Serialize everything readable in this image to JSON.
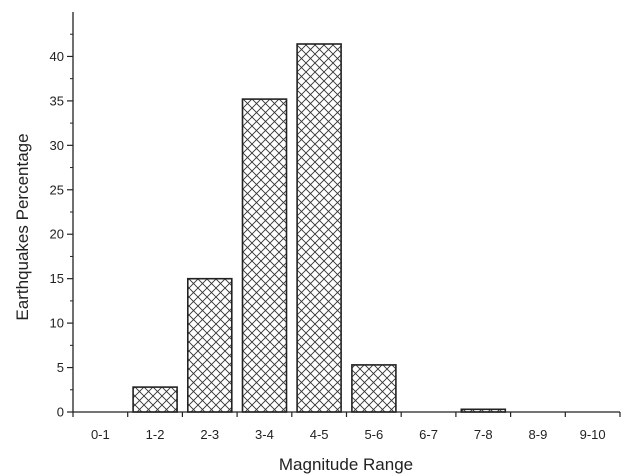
{
  "chart_data": {
    "type": "bar",
    "categories": [
      "0-1",
      "1-2",
      "2-3",
      "3-4",
      "4-5",
      "5-6",
      "6-7",
      "7-8",
      "8-9",
      "9-10"
    ],
    "values": [
      0,
      2.8,
      15,
      35.2,
      41.4,
      5.3,
      0,
      0.3,
      0,
      0
    ],
    "title": "",
    "xlabel": "Magnitude Range",
    "ylabel": "Earthquakes Percentage",
    "ylim": [
      0,
      45
    ],
    "yticks": [
      0,
      5,
      10,
      15,
      20,
      25,
      30,
      35,
      40
    ],
    "ytick_labels": [
      "0",
      "5",
      "10",
      "15",
      "20",
      "25",
      "30",
      "35",
      "40"
    ],
    "bar_fill": "crosshatch",
    "bar_edge_color": "#222222",
    "grid": false,
    "legend": "none"
  }
}
